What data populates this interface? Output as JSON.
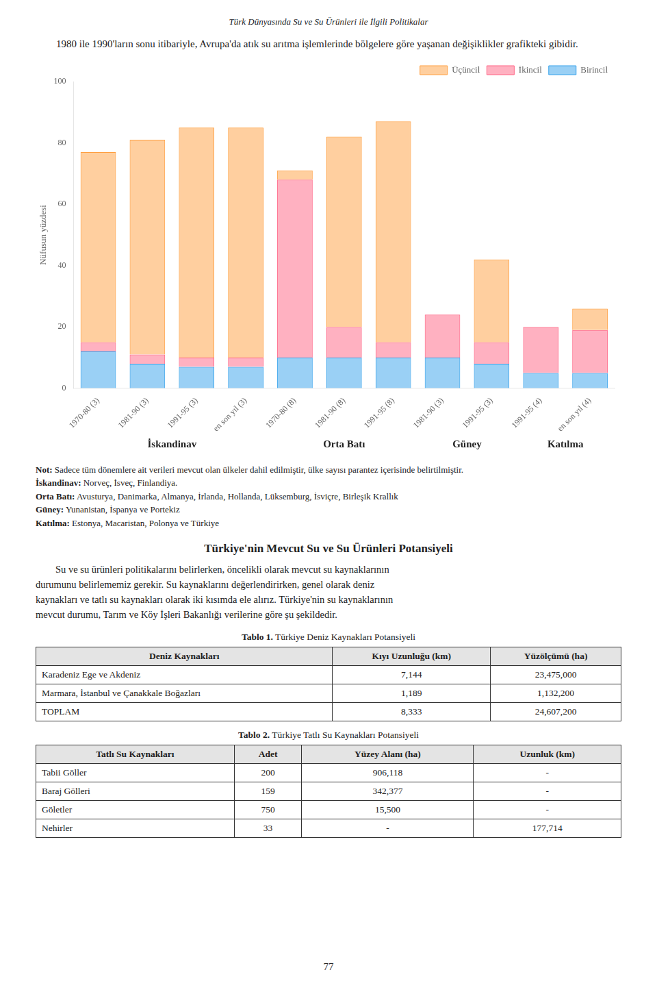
{
  "page_title": "Türk Dünyasında Su ve Su Ürünleri ile İlgili Politikalar",
  "intro": "1980 ile 1990'ların sonu itibariyle, Avrupa'da atık su arıtma işlemlerinde bölgelere göre yaşanan değişiklikler grafikteki gibidir.",
  "chart_data": {
    "type": "bar",
    "stacked": true,
    "ylabel": "Nüfusun yüzdesi",
    "ylim": [
      0,
      100
    ],
    "yticks": [
      0,
      20,
      40,
      60,
      80,
      100
    ],
    "grid": false,
    "legend": "upper right",
    "categories": [
      "1970-80 (3)",
      "1981-90 (3)",
      "1991-95 (3)",
      "en son yıl (3)",
      "1970-80 (8)",
      "1981-90 (8)",
      "1991-95 (8)",
      "1981-90 (3)",
      "1991-95 (3)",
      "1991-95 (4)",
      "en son yıl (4)"
    ],
    "groups": [
      {
        "name": "İskandinav",
        "categories": [
          "1970-80 (3)",
          "1981-90 (3)",
          "1991-95 (3)",
          "en son yıl (3)"
        ]
      },
      {
        "name": "Orta Batı",
        "categories": [
          "1970-80 (8)",
          "1981-90 (8)",
          "1991-95 (8)"
        ]
      },
      {
        "name": "Güney",
        "categories": [
          "1981-90 (3)",
          "1991-95 (3)"
        ]
      },
      {
        "name": "Katılma",
        "categories": [
          "1991-95 (4)",
          "en son yıl (4)"
        ]
      }
    ],
    "series": [
      {
        "name": "Birincil",
        "values": [
          12,
          8,
          7,
          7,
          10,
          10,
          10,
          10,
          8,
          5,
          5
        ]
      },
      {
        "name": "İkincil",
        "values": [
          3,
          3,
          3,
          3,
          58,
          10,
          5,
          14,
          7,
          15,
          14
        ]
      },
      {
        "name": "Üçüncil",
        "values": [
          62,
          70,
          75,
          75,
          3,
          62,
          72,
          0,
          27,
          0,
          7
        ]
      }
    ]
  },
  "notes": [
    {
      "bold": "Not:",
      "text": " Sadece tüm dönemlere ait verileri mevcut olan ülkeler dahil edilmiştir, ülke sayısı parantez içerisinde belirtilmiştir."
    },
    {
      "bold": "İskandinav:",
      "text": " Norveç, İsveç, Finlandiya."
    },
    {
      "bold": "Orta Batı:",
      "text": " Avusturya, Danimarka, Almanya, İrlanda, Hollanda, Lüksemburg, İsviçre, Birleşik Krallık"
    },
    {
      "bold": "Güney:",
      "text": " Yunanistan, İspanya ve Portekiz"
    },
    {
      "bold": "Katılma:",
      "text": " Estonya, Macaristan, Polonya ve Türkiye"
    }
  ],
  "section_title": "Türkiye'nin Mevcut Su ve Su Ürünleri Potansiyeli",
  "section_text_lines": [
    "Su ve su ürünleri politikalarını belirlerken, öncelikli olarak mevcut su kaynaklarının",
    "durumunu belirlememiz gerekir.  Su kaynaklarını değerlendirirken, genel olarak deniz",
    "kaynakları ve tatlı su kaynakları olarak iki kısımda ele alırız. Türkiye'nin su kaynaklarının",
    "mevcut durumu, Tarım ve Köy İşleri Bakanlığı verilerine göre şu şekildedir."
  ],
  "tables": [
    {
      "title_bold": "Tablo 1.",
      "title": " Türkiye Deniz Kaynakları Potansiyeli",
      "headers": [
        "Deniz Kaynakları",
        "Kıyı Uzunluğu (km)",
        "Yüzölçümü (ha)"
      ],
      "rows": [
        [
          "Karadeniz Ege ve Akdeniz",
          "7,144",
          "23,475,000"
        ],
        [
          "Marmara, İstanbul ve Çanakkale Boğazları",
          "1,189",
          "1,132,200"
        ],
        [
          "TOPLAM",
          "8,333",
          "24,607,200"
        ]
      ]
    },
    {
      "title_bold": "Tablo 2.",
      "title": " Türkiye Tatlı Su Kaynakları Potansiyeli",
      "headers": [
        "Tatlı Su Kaynakları",
        "Adet",
        "Yüzey Alanı (ha)",
        "Uzunluk (km)"
      ],
      "rows": [
        [
          "Tabii Göller",
          "200",
          "906,118",
          "-"
        ],
        [
          "Baraj Gölleri",
          "159",
          "342,377",
          "-"
        ],
        [
          "Göletler",
          "750",
          "15,500",
          "-"
        ],
        [
          "Nehirler",
          "33",
          "-",
          "177,714"
        ]
      ]
    }
  ],
  "page_number": "77"
}
